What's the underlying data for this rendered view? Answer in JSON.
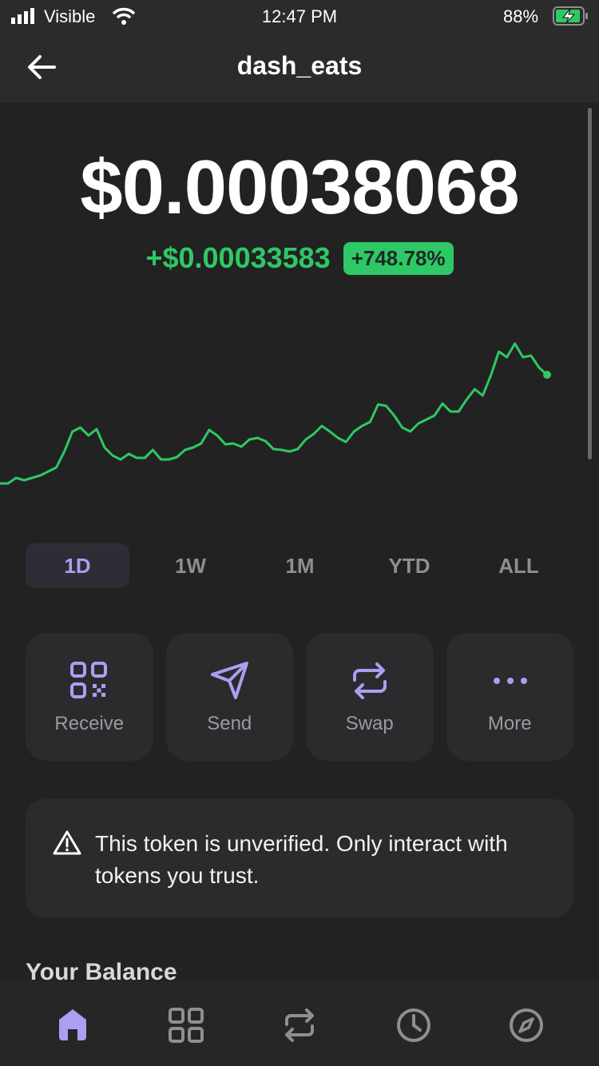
{
  "status": {
    "carrier": "Visible",
    "time": "12:47 PM",
    "battery": "88%"
  },
  "header": {
    "title": "dash_eats"
  },
  "price": {
    "value": "$0.00038068",
    "change": "+$0.00033583",
    "change_percent": "+748.78%"
  },
  "chart": {
    "color": "#2ec866",
    "values": [
      15,
      15,
      22,
      19,
      22,
      25,
      30,
      35,
      55,
      80,
      85,
      75,
      83,
      60,
      50,
      45,
      52,
      47,
      47,
      57,
      45,
      45,
      48,
      57,
      60,
      65,
      82,
      75,
      64,
      65,
      61,
      70,
      72,
      68,
      58,
      57,
      55,
      58,
      70,
      77,
      87,
      80,
      72,
      67,
      80,
      87,
      92,
      114,
      112,
      100,
      85,
      80,
      90,
      95,
      100,
      115,
      105,
      105,
      120,
      133,
      125,
      150,
      180,
      173,
      190,
      173,
      175,
      160,
      151
    ]
  },
  "periods": [
    "1D",
    "1W",
    "1M",
    "YTD",
    "ALL"
  ],
  "actions": [
    "Receive",
    "Send",
    "Swap",
    "More"
  ],
  "warning": {
    "text": "This token is unverified. Only interact with tokens you trust."
  },
  "balance": {
    "heading": "Your Balance"
  }
}
